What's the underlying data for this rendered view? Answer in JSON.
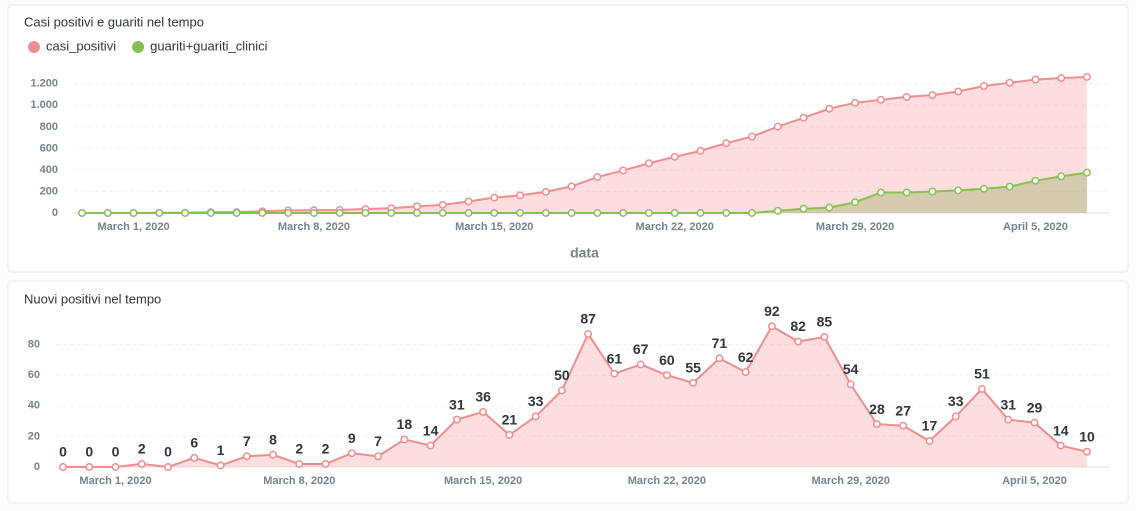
{
  "chart_data": [
    {
      "type": "area",
      "title": "Casi positivi e guariti nel tempo",
      "xlabel": "data",
      "legend": "top-left",
      "grid": true,
      "x": [
        "2020-02-28",
        "2020-02-29",
        "2020-03-01",
        "2020-03-02",
        "2020-03-03",
        "2020-03-04",
        "2020-03-05",
        "2020-03-06",
        "2020-03-07",
        "2020-03-08",
        "2020-03-09",
        "2020-03-10",
        "2020-03-11",
        "2020-03-12",
        "2020-03-13",
        "2020-03-14",
        "2020-03-15",
        "2020-03-16",
        "2020-03-17",
        "2020-03-18",
        "2020-03-19",
        "2020-03-20",
        "2020-03-21",
        "2020-03-22",
        "2020-03-23",
        "2020-03-24",
        "2020-03-25",
        "2020-03-26",
        "2020-03-27",
        "2020-03-28",
        "2020-03-29",
        "2020-03-30",
        "2020-03-31",
        "2020-04-01",
        "2020-04-02",
        "2020-04-03",
        "2020-04-04",
        "2020-04-05",
        "2020-04-06",
        "2020-04-07"
      ],
      "xticks": [
        {
          "value": "2020-03-01",
          "label": "March 1, 2020"
        },
        {
          "value": "2020-03-08",
          "label": "March 8, 2020"
        },
        {
          "value": "2020-03-15",
          "label": "March 15, 2020"
        },
        {
          "value": "2020-03-22",
          "label": "March 22, 2020"
        },
        {
          "value": "2020-03-29",
          "label": "March 29, 2020"
        },
        {
          "value": "2020-04-05",
          "label": "April 5, 2020"
        }
      ],
      "ylim": [
        0,
        1300
      ],
      "yticks": [
        0,
        200,
        400,
        600,
        800,
        {
          "value": 1000,
          "label": "1.000"
        },
        {
          "value": 1200,
          "label": "1.200"
        }
      ],
      "series": [
        {
          "name": "casi_positivi",
          "color": "#ee8d8d",
          "fill": "rgba(245,160,165,0.35)",
          "values": [
            0,
            0,
            0,
            2,
            2,
            8,
            9,
            16,
            24,
            26,
            28,
            37,
            44,
            62,
            76,
            107,
            143,
            164,
            197,
            247,
            334,
            395,
            462,
            522,
            577,
            648,
            710,
            802,
            884,
            969,
            1023,
            1051,
            1078,
            1095,
            1128,
            1179,
            1210,
            1239,
            1253,
            1263
          ]
        },
        {
          "name": "guariti+guariti_clinici",
          "color": "#88c04f",
          "fill": "rgba(140,170,80,0.35)",
          "values": [
            0,
            0,
            0,
            0,
            0,
            0,
            0,
            0,
            0,
            0,
            0,
            0,
            0,
            0,
            0,
            0,
            0,
            0,
            0,
            0,
            0,
            0,
            0,
            0,
            0,
            0,
            0,
            20,
            40,
            50,
            100,
            190,
            190,
            200,
            210,
            225,
            245,
            300,
            340,
            375
          ]
        }
      ]
    },
    {
      "type": "area",
      "title": "Nuovi positivi nel tempo",
      "grid": true,
      "data_labels": true,
      "x": [
        "2020-02-28",
        "2020-02-29",
        "2020-03-01",
        "2020-03-02",
        "2020-03-03",
        "2020-03-04",
        "2020-03-05",
        "2020-03-06",
        "2020-03-07",
        "2020-03-08",
        "2020-03-09",
        "2020-03-10",
        "2020-03-11",
        "2020-03-12",
        "2020-03-13",
        "2020-03-14",
        "2020-03-15",
        "2020-03-16",
        "2020-03-17",
        "2020-03-18",
        "2020-03-19",
        "2020-03-20",
        "2020-03-21",
        "2020-03-22",
        "2020-03-23",
        "2020-03-24",
        "2020-03-25",
        "2020-03-26",
        "2020-03-27",
        "2020-03-28",
        "2020-03-29",
        "2020-03-30",
        "2020-03-31",
        "2020-04-01",
        "2020-04-02",
        "2020-04-03",
        "2020-04-04",
        "2020-04-05",
        "2020-04-06",
        "2020-04-07"
      ],
      "xticks": [
        {
          "value": "2020-03-01",
          "label": "March 1, 2020"
        },
        {
          "value": "2020-03-08",
          "label": "March 8, 2020"
        },
        {
          "value": "2020-03-15",
          "label": "March 15, 2020"
        },
        {
          "value": "2020-03-22",
          "label": "March 22, 2020"
        },
        {
          "value": "2020-03-29",
          "label": "March 29, 2020"
        },
        {
          "value": "2020-04-05",
          "label": "April 5, 2020"
        }
      ],
      "ylim": [
        0,
        100
      ],
      "yticks": [
        0,
        20,
        40,
        60,
        80
      ],
      "series": [
        {
          "color": "#ee8d8d",
          "fill": "rgba(245,160,165,0.35)",
          "values": [
            0,
            0,
            0,
            2,
            0,
            6,
            1,
            7,
            8,
            2,
            2,
            9,
            7,
            18,
            14,
            31,
            36,
            21,
            33,
            50,
            87,
            61,
            67,
            60,
            55,
            71,
            62,
            92,
            82,
            85,
            54,
            28,
            27,
            17,
            33,
            51,
            31,
            29,
            14,
            10
          ]
        }
      ]
    }
  ]
}
